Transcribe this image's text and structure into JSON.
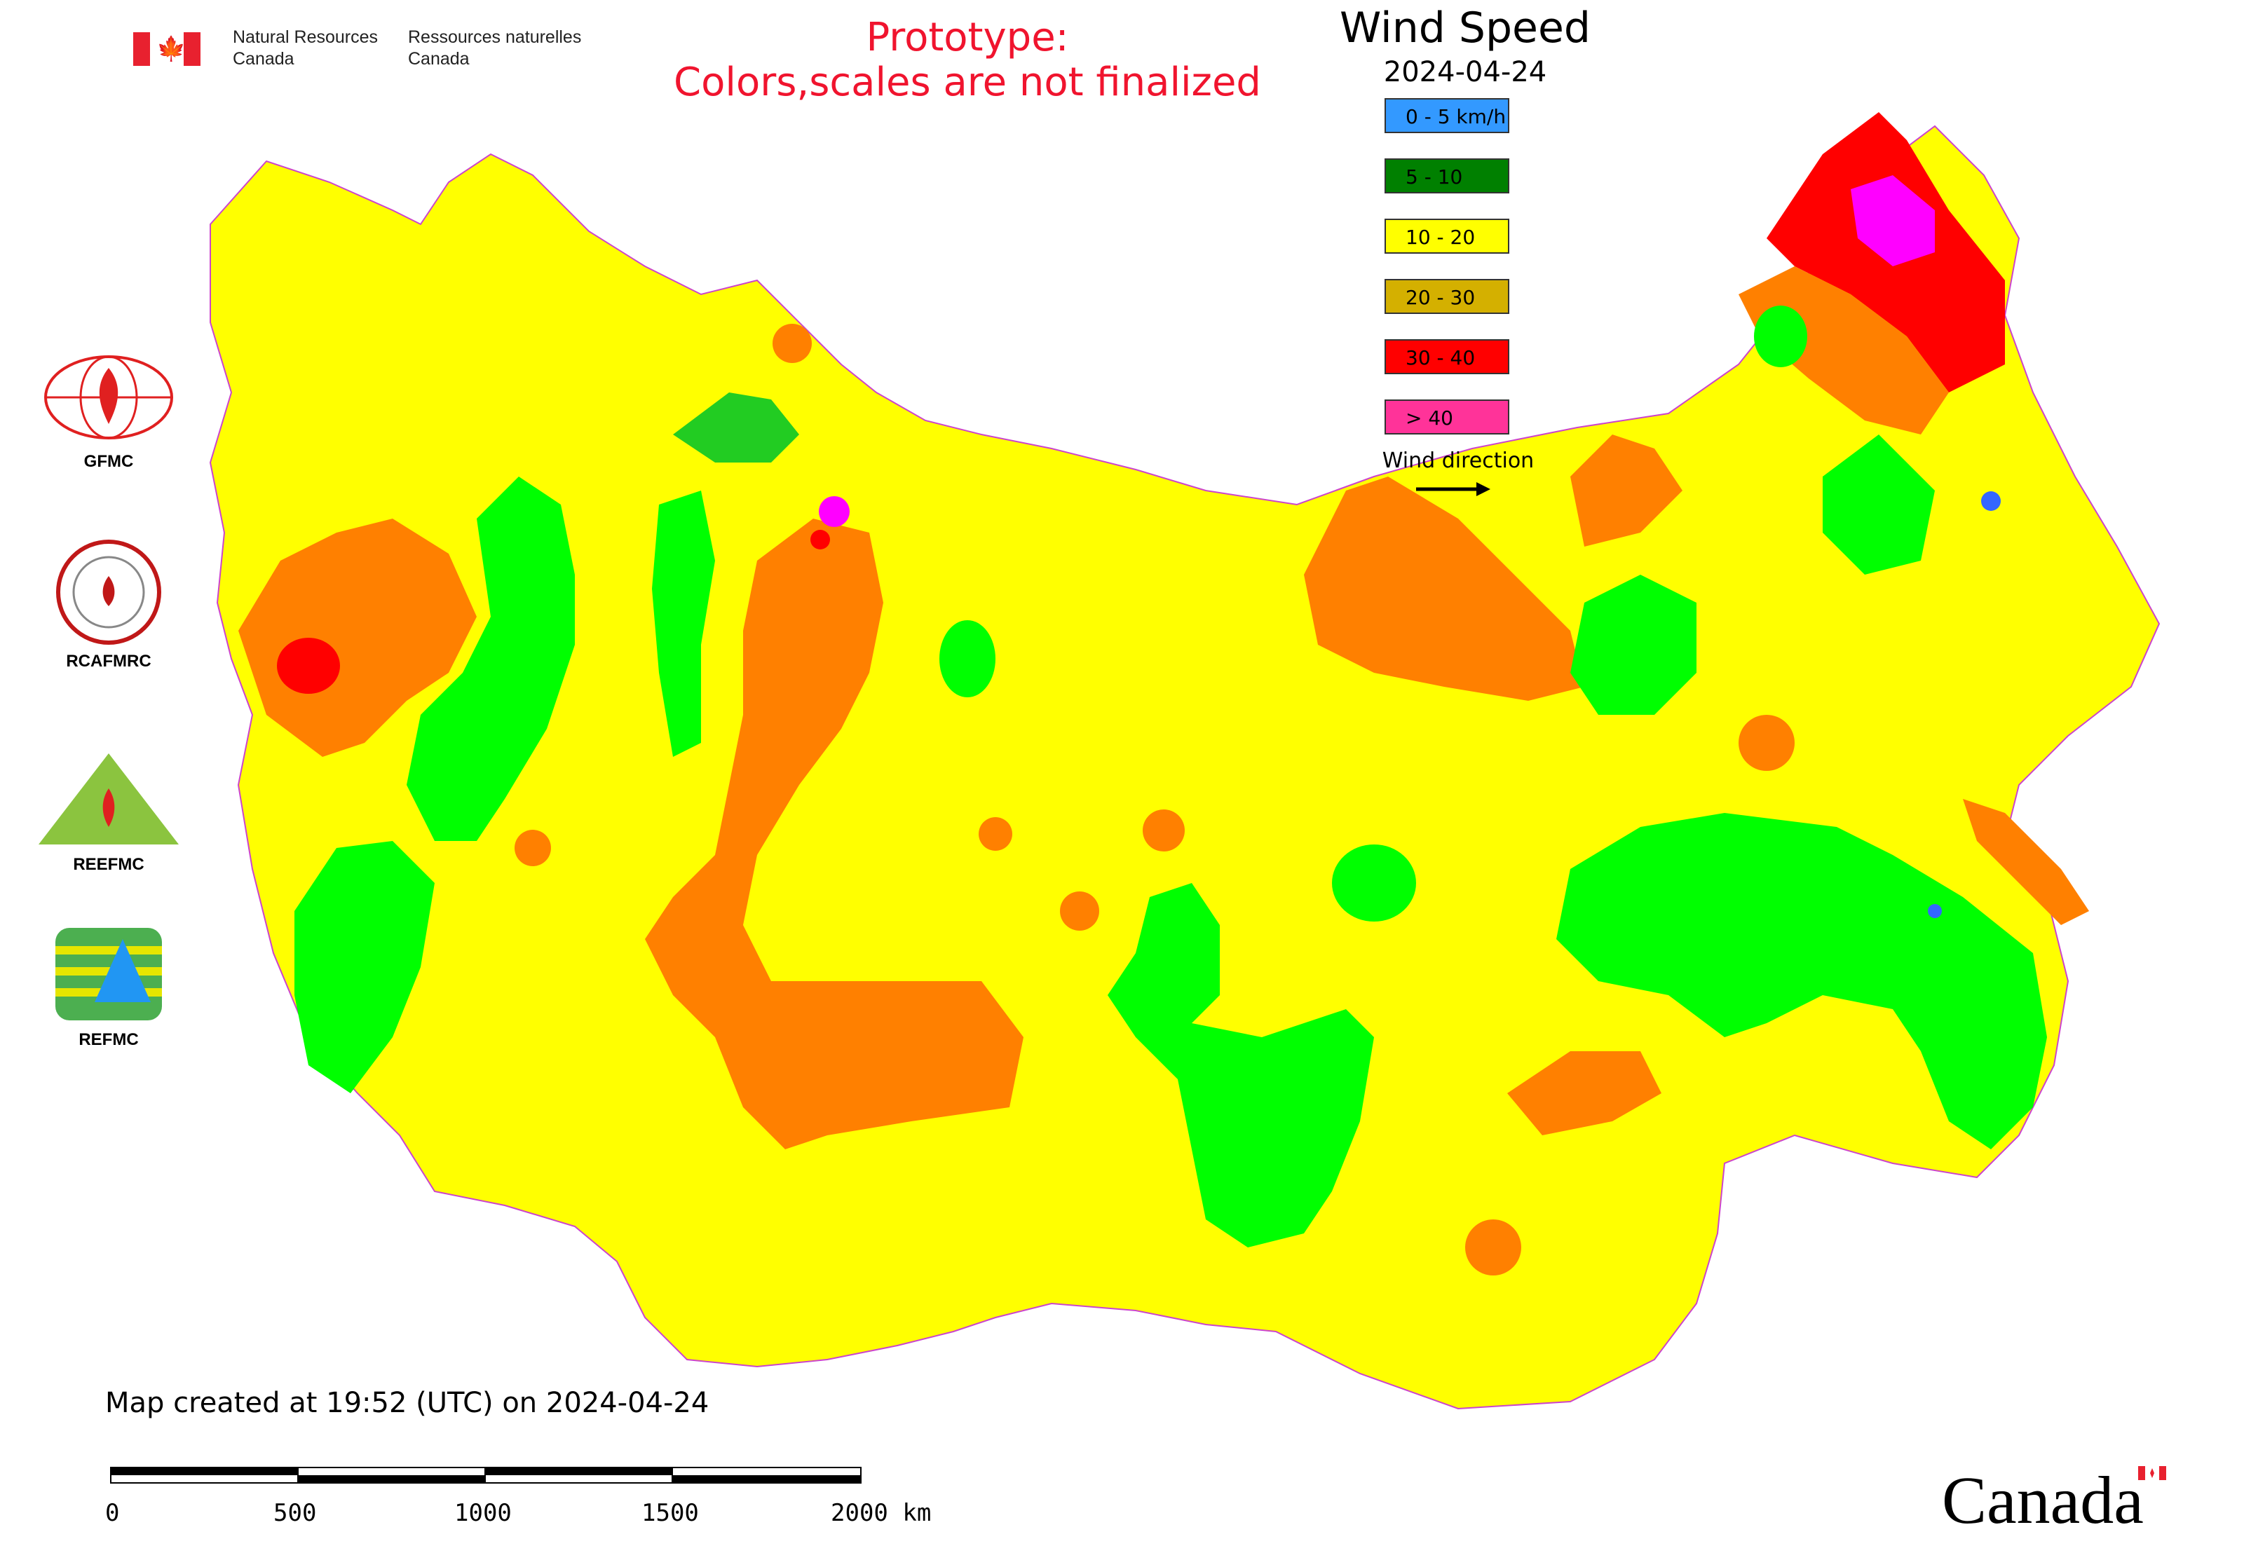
{
  "header": {
    "dept_en_line1": "Natural Resources",
    "dept_en_line2": "Canada",
    "dept_fr_line1": "Ressources naturelles",
    "dept_fr_line2": "Canada"
  },
  "notice": {
    "line1": "Prototype:",
    "line2": "Colors,scales are not finalized"
  },
  "legend": {
    "title": "Wind Speed",
    "date": "2024-04-24",
    "items": [
      {
        "label": "0 - 5 km/h",
        "color": "#3399ff"
      },
      {
        "label": "5 - 10",
        "color": "#008000"
      },
      {
        "label": "10 - 20",
        "color": "#ffff00"
      },
      {
        "label": "20 - 30",
        "color": "#d4b000"
      },
      {
        "label": "30 - 40",
        "color": "#ff0000"
      },
      {
        "label": "> 40",
        "color": "#ff3399"
      }
    ],
    "wind_direction_label": "Wind direction"
  },
  "map_colors": {
    "yellow": "#ffff00",
    "orange": "#ff8000",
    "green": "#00ff00",
    "red": "#ff0000",
    "magenta": "#ff00ff",
    "blue": "#3366ff",
    "border": "#cc44cc"
  },
  "logos": [
    {
      "caption": "GFMC"
    },
    {
      "caption": "RCAFMRC"
    },
    {
      "caption": "REEFMC"
    },
    {
      "caption": "REFMC"
    }
  ],
  "footer": {
    "created": "Map created at 19:52 (UTC) on 2024-04-24",
    "scale_labels": [
      "0",
      "500",
      "1000",
      "1500",
      "2000 km"
    ],
    "wordmark": "Canada"
  }
}
